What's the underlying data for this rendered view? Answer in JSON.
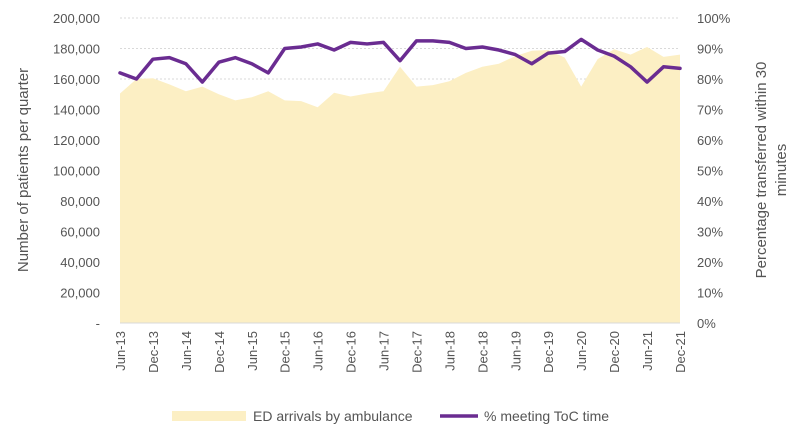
{
  "chart_data": {
    "type": "area+line",
    "x_tick_labels": [
      "Jun-13",
      "Dec-13",
      "Jun-14",
      "Dec-14",
      "Jun-15",
      "Dec-15",
      "Jun-16",
      "Dec-16",
      "Jun-17",
      "Dec-17",
      "Jun-18",
      "Dec-18",
      "Jun-19",
      "Dec-19",
      "Jun-20",
      "Dec-20",
      "Jun-21",
      "Dec-21"
    ],
    "left_axis": {
      "label": "Number of patients per quarter",
      "ylim": [
        0,
        200000
      ],
      "ticks": [
        {
          "value": 0,
          "label": "-"
        },
        {
          "value": 20000,
          "label": "20,000"
        },
        {
          "value": 40000,
          "label": "40,000"
        },
        {
          "value": 60000,
          "label": "60,000"
        },
        {
          "value": 80000,
          "label": "80,000"
        },
        {
          "value": 100000,
          "label": "100,000"
        },
        {
          "value": 120000,
          "label": "120,000"
        },
        {
          "value": 140000,
          "label": "140,000"
        },
        {
          "value": 160000,
          "label": "160,000"
        },
        {
          "value": 180000,
          "label": "180,000"
        },
        {
          "value": 200000,
          "label": "200,000"
        }
      ]
    },
    "right_axis": {
      "label_lines": [
        "Percentage transferred within 30",
        "minutes"
      ],
      "ylim": [
        0,
        100
      ],
      "ticks": [
        {
          "value": 0,
          "label": "0%"
        },
        {
          "value": 10,
          "label": "10%"
        },
        {
          "value": 20,
          "label": "20%"
        },
        {
          "value": 30,
          "label": "30%"
        },
        {
          "value": 40,
          "label": "40%"
        },
        {
          "value": 50,
          "label": "50%"
        },
        {
          "value": 60,
          "label": "60%"
        },
        {
          "value": 70,
          "label": "70%"
        },
        {
          "value": 80,
          "label": "80%"
        },
        {
          "value": 90,
          "label": "90%"
        },
        {
          "value": 100,
          "label": "100%"
        }
      ]
    },
    "series": [
      {
        "name": "ED arrivals by ambulance",
        "type": "area",
        "axis": "left",
        "color": "#fcefc4",
        "values": [
          150500,
          160000,
          160500,
          156500,
          152000,
          155000,
          150000,
          146000,
          148000,
          152000,
          146000,
          145500,
          141500,
          151000,
          148500,
          150500,
          152000,
          168000,
          155000,
          156000,
          158500,
          164000,
          168000,
          170000,
          175000,
          178500,
          179000,
          174000,
          155000,
          173000,
          179500,
          176000,
          181000,
          174500,
          176000
        ]
      },
      {
        "name": "% meeting ToC time",
        "type": "line",
        "axis": "right",
        "color": "#6a2c91",
        "values": [
          82.0,
          80.0,
          86.5,
          87.0,
          85.0,
          79.0,
          85.5,
          87.0,
          85.0,
          82.0,
          90.0,
          90.5,
          91.5,
          89.5,
          92.0,
          91.5,
          92.0,
          86.0,
          92.5,
          92.5,
          92.0,
          90.0,
          90.5,
          89.5,
          88.0,
          85.0,
          88.5,
          89.0,
          93.0,
          89.5,
          87.5,
          84.0,
          79.0,
          84.0,
          83.5
        ]
      }
    ],
    "legend_position": "bottom"
  }
}
